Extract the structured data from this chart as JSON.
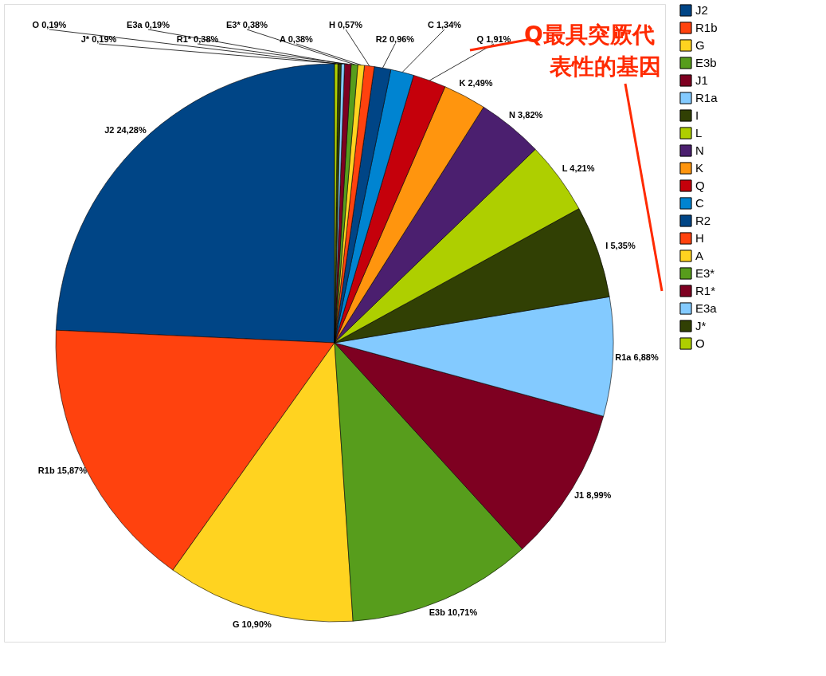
{
  "chart_data": {
    "type": "pie",
    "categories": [
      "J2",
      "R1b",
      "G",
      "E3b",
      "J1",
      "R1a",
      "I",
      "L",
      "N",
      "K",
      "Q",
      "C",
      "R2",
      "H",
      "A",
      "E3*",
      "R1*",
      "E3a",
      "J*",
      "O"
    ],
    "values": [
      24.28,
      15.87,
      10.9,
      10.71,
      8.99,
      6.88,
      5.35,
      4.21,
      3.82,
      2.49,
      1.91,
      1.34,
      0.96,
      0.57,
      0.38,
      0.38,
      0.38,
      0.19,
      0.19,
      0.19
    ],
    "value_labels": [
      "24,28%",
      "15,87%",
      "10,90%",
      "10,71%",
      "8,99%",
      "6,88%",
      "5,35%",
      "4,21%",
      "3,82%",
      "2,49%",
      "1,91%",
      "1,34%",
      "0,96%",
      "0,57%",
      "0,38%",
      "0,38%",
      "0,38%",
      "0,19%",
      "0,19%",
      "0,19%"
    ],
    "colors": [
      "#004586",
      "#ff420e",
      "#ffd320",
      "#579d1c",
      "#7e0021",
      "#83caff",
      "#314004",
      "#aecf00",
      "#4b1f6f",
      "#ff950e",
      "#c5000b",
      "#0084d1",
      "#004586",
      "#ff420e",
      "#ffd320",
      "#579d1c",
      "#7e0021",
      "#83caff",
      "#314004",
      "#aecf00"
    ],
    "legend": "right",
    "annotations": [
      "Q最具突厥代表性的基因"
    ]
  }
}
